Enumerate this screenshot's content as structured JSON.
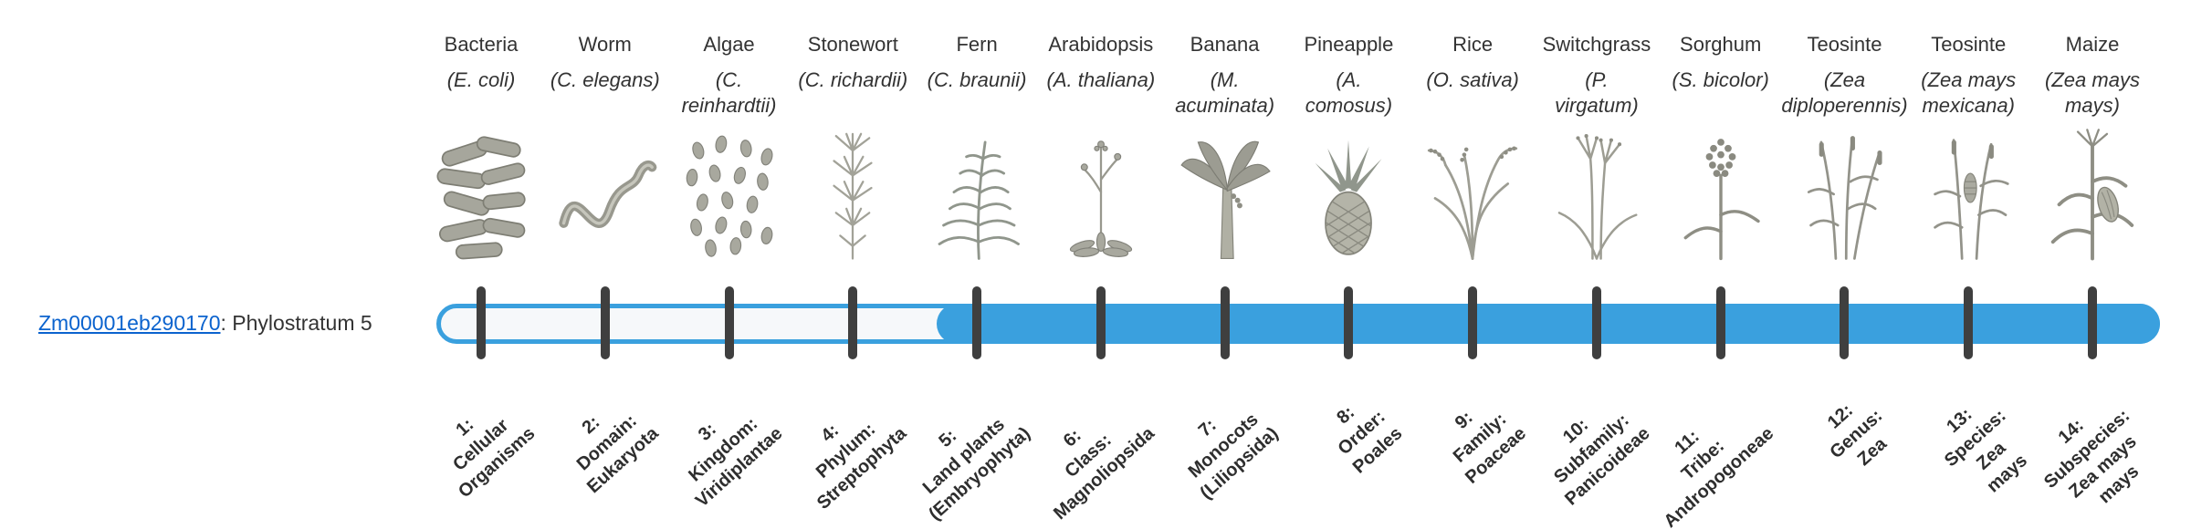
{
  "gene": {
    "id": "Zm00001eb290170",
    "suffix": ": Phylostratum 5",
    "phylostratum": 5
  },
  "colors": {
    "bar_fill": "#3AA0DE",
    "bar_empty": "#F6F8FA",
    "tick": "#3F3F3F",
    "link": "#0B63CE",
    "text": "#333333"
  },
  "bar": {
    "filled_from_stratum": 5,
    "total_strata": 14
  },
  "organisms": [
    {
      "common": "Bacteria",
      "sci": [
        "(E. coli)"
      ],
      "icon": "bacteria"
    },
    {
      "common": "Worm",
      "sci": [
        "(C. elegans)"
      ],
      "icon": "worm"
    },
    {
      "common": "Algae",
      "sci": [
        "(C.",
        "reinhardtii)"
      ],
      "icon": "algae"
    },
    {
      "common": "Stonewort",
      "sci": [
        "(C. richardii)"
      ],
      "icon": "stonewort"
    },
    {
      "common": "Fern",
      "sci": [
        "(C. braunii)"
      ],
      "icon": "fern"
    },
    {
      "common": "Arabidopsis",
      "sci": [
        "(A. thaliana)"
      ],
      "icon": "arabidopsis"
    },
    {
      "common": "Banana",
      "sci": [
        "(M.",
        "acuminata)"
      ],
      "icon": "banana"
    },
    {
      "common": "Pineapple",
      "sci": [
        "(A.",
        "comosus)"
      ],
      "icon": "pineapple"
    },
    {
      "common": "Rice",
      "sci": [
        "(O. sativa)"
      ],
      "icon": "rice"
    },
    {
      "common": "Switchgrass",
      "sci": [
        "(P.",
        "virgatum)"
      ],
      "icon": "switchgrass"
    },
    {
      "common": "Sorghum",
      "sci": [
        "(S. bicolor)"
      ],
      "icon": "sorghum"
    },
    {
      "common": "Teosinte",
      "sci": [
        "(Zea",
        "diploperennis)"
      ],
      "icon": "teosinte"
    },
    {
      "common": "Teosinte",
      "sci": [
        "(Zea mays",
        "mexicana)"
      ],
      "icon": "teosinte2"
    },
    {
      "common": "Maize",
      "sci": [
        "(Zea mays",
        "mays)"
      ],
      "icon": "maize"
    }
  ],
  "strata": [
    {
      "lines": [
        "1:",
        "Cellular",
        "Organisms"
      ]
    },
    {
      "lines": [
        "2:",
        "Domain:",
        "Eukaryota"
      ]
    },
    {
      "lines": [
        "3:",
        "Kingdom:",
        "Viridiplantae"
      ]
    },
    {
      "lines": [
        "4:",
        "Phylum:",
        "Streptophyta"
      ]
    },
    {
      "lines": [
        "5:",
        "Land plants",
        "(Embryophyta)"
      ]
    },
    {
      "lines": [
        "6:",
        "Class:",
        "Magnoliopsida"
      ]
    },
    {
      "lines": [
        "7:",
        "Monocots",
        "(Liliopsida)"
      ]
    },
    {
      "lines": [
        "8:",
        "Order:",
        "Poales"
      ]
    },
    {
      "lines": [
        "9:",
        "Family:",
        "Poaceae"
      ]
    },
    {
      "lines": [
        "10:",
        "Subfamily:",
        "Panicoideae"
      ]
    },
    {
      "lines": [
        "11:",
        "Tribe:",
        "Andropogoneae"
      ]
    },
    {
      "lines": [
        "12:",
        "Genus:",
        "Zea"
      ]
    },
    {
      "lines": [
        "13:",
        "Species:",
        "Zea",
        "mays"
      ]
    },
    {
      "lines": [
        "14:",
        "Subspecies:",
        "Zea mays",
        "mays"
      ]
    }
  ]
}
